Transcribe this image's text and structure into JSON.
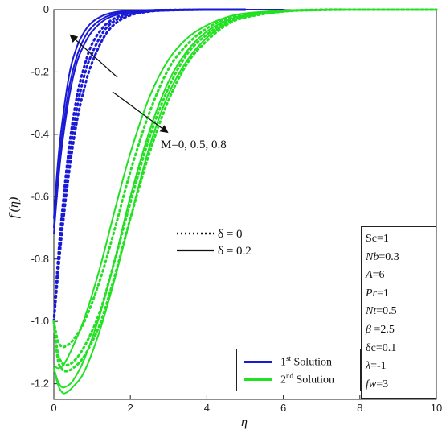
{
  "chart_data": {
    "type": "line",
    "xlabel": "η",
    "ylabel": "f′(η)",
    "xlim": [
      0,
      10
    ],
    "ylim": [
      -1.25,
      0
    ],
    "x_ticks": [
      "0",
      "2",
      "4",
      "6",
      "8",
      "10"
    ],
    "y_ticks": [
      "0",
      "-0.2",
      "-0.4",
      "-0.6",
      "-0.8",
      "-1.0",
      "-1.2"
    ],
    "colors": {
      "first": "#1a1ad6",
      "second": "#22e022"
    },
    "series": [
      {
        "solution": "first",
        "M": 0,
        "delta": 0.2,
        "style": "solid",
        "x": [
          0,
          0.1,
          0.2,
          0.4,
          0.6,
          0.8,
          1.0,
          1.3,
          1.6,
          2.0,
          2.5,
          3.0,
          4.0,
          5.0,
          6.0
        ],
        "y": [
          -0.67,
          -0.5,
          -0.38,
          -0.21,
          -0.12,
          -0.07,
          -0.04,
          -0.018,
          -0.008,
          -0.003,
          -0.001,
          0,
          0,
          0,
          0
        ]
      },
      {
        "solution": "first",
        "M": 0.5,
        "delta": 0.2,
        "style": "solid",
        "x": [
          0,
          0.1,
          0.2,
          0.4,
          0.6,
          0.8,
          1.0,
          1.3,
          1.6,
          2.0,
          2.5,
          3.0,
          4.0,
          5.0,
          6.0
        ],
        "y": [
          -0.7,
          -0.54,
          -0.42,
          -0.25,
          -0.15,
          -0.09,
          -0.055,
          -0.027,
          -0.013,
          -0.005,
          -0.002,
          0,
          0,
          0,
          0
        ]
      },
      {
        "solution": "first",
        "M": 0.8,
        "delta": 0.2,
        "style": "solid",
        "x": [
          0,
          0.1,
          0.2,
          0.4,
          0.6,
          0.8,
          1.0,
          1.3,
          1.6,
          2.0,
          2.5,
          3.0,
          4.0,
          5.0,
          6.0
        ],
        "y": [
          -0.72,
          -0.57,
          -0.45,
          -0.28,
          -0.17,
          -0.11,
          -0.07,
          -0.035,
          -0.018,
          -0.007,
          -0.002,
          0,
          0,
          0,
          0
        ]
      },
      {
        "solution": "first",
        "M": 0,
        "delta": 0,
        "style": "dotted",
        "x": [
          0,
          0.1,
          0.2,
          0.4,
          0.6,
          0.8,
          1.0,
          1.3,
          1.6,
          2.0,
          2.5,
          3.0,
          4.0,
          5.0
        ],
        "y": [
          -1.0,
          -0.82,
          -0.67,
          -0.44,
          -0.28,
          -0.18,
          -0.11,
          -0.055,
          -0.027,
          -0.01,
          -0.003,
          -0.001,
          0,
          0
        ]
      },
      {
        "solution": "first",
        "M": 0.5,
        "delta": 0,
        "style": "dotted",
        "x": [
          0,
          0.1,
          0.2,
          0.4,
          0.6,
          0.8,
          1.0,
          1.3,
          1.6,
          2.0,
          2.5,
          3.0,
          4.0,
          5.0
        ],
        "y": [
          -1.0,
          -0.84,
          -0.7,
          -0.48,
          -0.32,
          -0.21,
          -0.14,
          -0.07,
          -0.035,
          -0.014,
          -0.005,
          -0.002,
          0,
          0
        ]
      },
      {
        "solution": "first",
        "M": 0.8,
        "delta": 0,
        "style": "dotted",
        "x": [
          0,
          0.1,
          0.2,
          0.4,
          0.6,
          0.8,
          1.0,
          1.3,
          1.6,
          2.0,
          2.5,
          3.0,
          4.0,
          5.0
        ],
        "y": [
          -1.0,
          -0.86,
          -0.73,
          -0.52,
          -0.36,
          -0.25,
          -0.17,
          -0.09,
          -0.045,
          -0.018,
          -0.006,
          -0.002,
          0,
          0
        ]
      },
      {
        "solution": "second",
        "M": 0,
        "delta": 0.2,
        "style": "solid",
        "x": [
          0,
          0.1,
          0.2,
          0.3,
          0.5,
          0.8,
          1.2,
          1.6,
          2.0,
          2.5,
          3.0,
          3.5,
          4.0,
          4.5,
          5.0,
          6.0,
          7.0,
          8.0,
          10.0
        ],
        "y": [
          -1.14,
          -1.15,
          -1.145,
          -1.13,
          -1.08,
          -0.99,
          -0.83,
          -0.64,
          -0.46,
          -0.28,
          -0.16,
          -0.09,
          -0.05,
          -0.025,
          -0.012,
          -0.003,
          0,
          0,
          0
        ]
      },
      {
        "solution": "second",
        "M": 0.5,
        "delta": 0.2,
        "style": "solid",
        "x": [
          0,
          0.1,
          0.2,
          0.3,
          0.5,
          0.8,
          1.2,
          1.6,
          2.0,
          2.5,
          3.0,
          3.5,
          4.0,
          4.5,
          5.0,
          6.0,
          7.0,
          8.0,
          10.0
        ],
        "y": [
          -1.15,
          -1.19,
          -1.21,
          -1.21,
          -1.19,
          -1.12,
          -0.98,
          -0.8,
          -0.6,
          -0.39,
          -0.23,
          -0.13,
          -0.07,
          -0.036,
          -0.018,
          -0.004,
          0,
          0,
          0
        ]
      },
      {
        "solution": "second",
        "M": 0.8,
        "delta": 0.2,
        "style": "solid",
        "x": [
          0,
          0.1,
          0.2,
          0.3,
          0.5,
          0.8,
          1.2,
          1.6,
          2.0,
          2.5,
          3.0,
          3.5,
          4.0,
          4.5,
          5.0,
          6.0,
          7.0,
          8.0,
          10.0
        ],
        "y": [
          -1.15,
          -1.2,
          -1.225,
          -1.23,
          -1.21,
          -1.16,
          -1.03,
          -0.86,
          -0.67,
          -0.44,
          -0.27,
          -0.16,
          -0.09,
          -0.046,
          -0.023,
          -0.006,
          -0.001,
          0,
          0
        ]
      },
      {
        "solution": "second",
        "M": 0,
        "delta": 0,
        "style": "dotted",
        "x": [
          0,
          0.1,
          0.2,
          0.3,
          0.5,
          0.8,
          1.2,
          1.6,
          2.0,
          2.5,
          3.0,
          3.5,
          4.0,
          4.5,
          5.0,
          6.0,
          7.0,
          8.0,
          10.0
        ],
        "y": [
          -1.0,
          -1.06,
          -1.08,
          -1.08,
          -1.06,
          -1.0,
          -0.87,
          -0.7,
          -0.52,
          -0.33,
          -0.19,
          -0.11,
          -0.06,
          -0.03,
          -0.015,
          -0.004,
          0,
          0,
          0
        ]
      },
      {
        "solution": "second",
        "M": 0.5,
        "delta": 0,
        "style": "dotted",
        "x": [
          0,
          0.1,
          0.2,
          0.3,
          0.5,
          0.8,
          1.2,
          1.6,
          2.0,
          2.5,
          3.0,
          3.5,
          4.0,
          4.5,
          5.0,
          6.0,
          7.0,
          8.0,
          10.0
        ],
        "y": [
          -1.0,
          -1.1,
          -1.13,
          -1.14,
          -1.13,
          -1.08,
          -0.97,
          -0.8,
          -0.62,
          -0.41,
          -0.25,
          -0.14,
          -0.08,
          -0.04,
          -0.02,
          -0.005,
          -0.001,
          0,
          0
        ]
      },
      {
        "solution": "second",
        "M": 0.8,
        "delta": 0,
        "style": "dotted",
        "x": [
          0,
          0.1,
          0.2,
          0.3,
          0.5,
          0.8,
          1.2,
          1.6,
          2.0,
          2.5,
          3.0,
          3.5,
          4.0,
          4.5,
          5.0,
          6.0,
          7.0,
          8.0,
          10.0
        ],
        "y": [
          -1.0,
          -1.12,
          -1.15,
          -1.16,
          -1.15,
          -1.11,
          -1.01,
          -0.85,
          -0.67,
          -0.46,
          -0.29,
          -0.17,
          -0.1,
          -0.05,
          -0.025,
          -0.006,
          -0.001,
          0,
          0
        ]
      }
    ],
    "annotation": {
      "m_label": "M=0, 0.5, 0.8"
    },
    "style_key": {
      "dotted_label": "δ = 0",
      "solid_label": "δ = 0.2"
    },
    "legend": {
      "first_main": "1",
      "first_sup": "st",
      "first_rest": " Solution",
      "second_main": "2",
      "second_sup": "nd",
      "second_rest": " Solution"
    },
    "parameters": [
      {
        "sym": "Sc",
        "val": "=1",
        "italic": false
      },
      {
        "sym": "Nb",
        "val": "=0.3",
        "italic": true
      },
      {
        "sym": "A",
        "val": "=6",
        "italic": true
      },
      {
        "sym": "Pr",
        "val": "=1",
        "italic": true
      },
      {
        "sym": "Nt",
        "val": "=0.5",
        "italic": true
      },
      {
        "sym": "β",
        "val": " =2.5",
        "italic": true
      },
      {
        "sym": "δc",
        "val": "=0.1",
        "italic": false
      },
      {
        "sym": "λ",
        "val": "=-1",
        "italic": true
      },
      {
        "sym": "fw",
        "val": "=3",
        "italic": true
      }
    ]
  }
}
